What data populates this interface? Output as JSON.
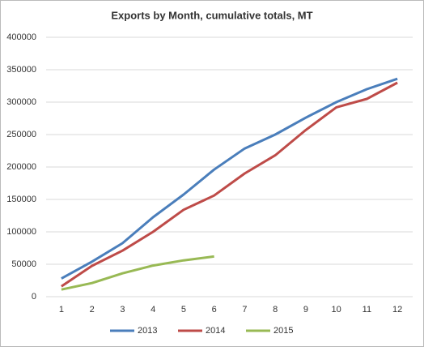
{
  "chart_data": {
    "type": "line",
    "title": "Exports by Month, cumulative totals, MT",
    "x": [
      1,
      2,
      3,
      4,
      5,
      6,
      7,
      8,
      9,
      10,
      11,
      12
    ],
    "series": [
      {
        "name": "2013",
        "color": "#4a7ebb",
        "values": [
          28000,
          54000,
          82500,
          122500,
          157500,
          196000,
          228500,
          250000,
          276000,
          300000,
          320000,
          336000
        ]
      },
      {
        "name": "2014",
        "color": "#be4b48",
        "values": [
          16000,
          47500,
          71000,
          100000,
          134000,
          156000,
          190000,
          218000,
          257000,
          292000,
          305000,
          330000
        ]
      },
      {
        "name": "2015",
        "color": "#98b954",
        "values": [
          11000,
          21000,
          36000,
          48000,
          56000,
          62000,
          null,
          null,
          null,
          null,
          null,
          null
        ]
      }
    ],
    "ylim": [
      0,
      400000
    ],
    "yticks": [
      0,
      50000,
      100000,
      150000,
      200000,
      250000,
      300000,
      350000,
      400000
    ],
    "grid": true,
    "legend": "bottom"
  }
}
